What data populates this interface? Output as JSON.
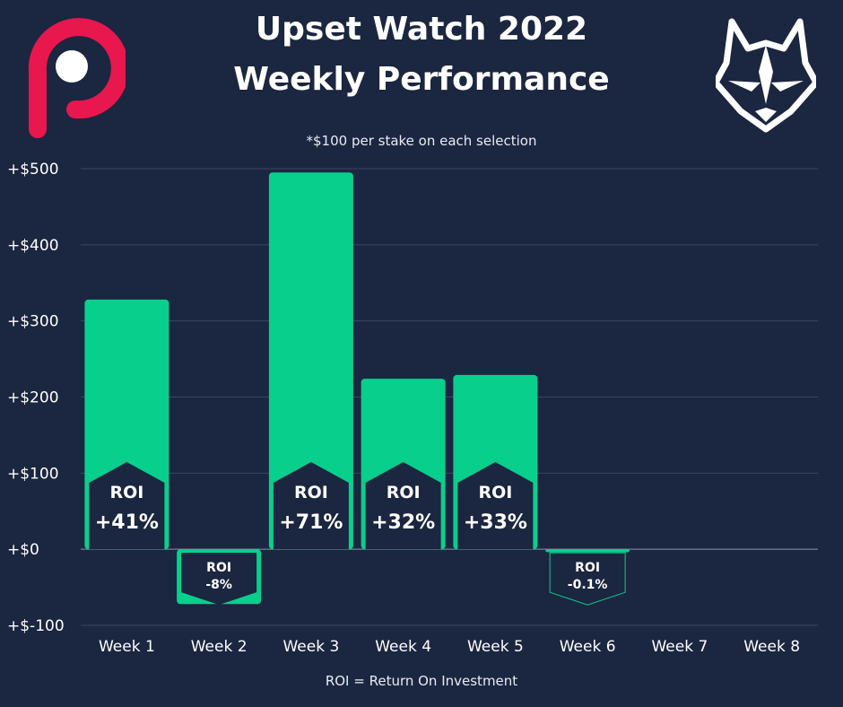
{
  "title_line1": "Upset Watch 2022",
  "title_line2": "Weekly Performance",
  "subtitle": "*$100 per stake on each selection",
  "footnote": "ROI = Return On Investment",
  "colors": {
    "background": "#1b2640",
    "bar": "#08cf8c",
    "logo_red": "#e8174d",
    "grid": "#3a4763",
    "text": "#ffffff"
  },
  "logos": {
    "left": "red-p-logo-icon",
    "right": "wolf-head-logo-icon"
  },
  "chart_data": {
    "type": "bar",
    "title": "Upset Watch 2022 Weekly Performance",
    "subtitle": "*$100 per stake on each selection",
    "xlabel": "",
    "ylabel": "",
    "categories": [
      "Week 1",
      "Week 2",
      "Week 3",
      "Week 4",
      "Week 5",
      "Week 6",
      "Week 7",
      "Week 8"
    ],
    "values": [
      328,
      -72,
      495,
      224,
      229,
      -4,
      0,
      0
    ],
    "roi_label": "ROI",
    "roi": [
      "+41%",
      "-8%",
      "+71%",
      "+32%",
      "+33%",
      "-0.1%",
      null,
      null
    ],
    "ylim": [
      -100,
      500
    ],
    "yticks": [
      500,
      400,
      300,
      200,
      100,
      0,
      -100
    ],
    "ytick_labels": [
      "+$500",
      "+$400",
      "+$300",
      "+$200",
      "+$100",
      "+$0",
      "+$-100"
    ],
    "grid": true,
    "legend": "none"
  }
}
